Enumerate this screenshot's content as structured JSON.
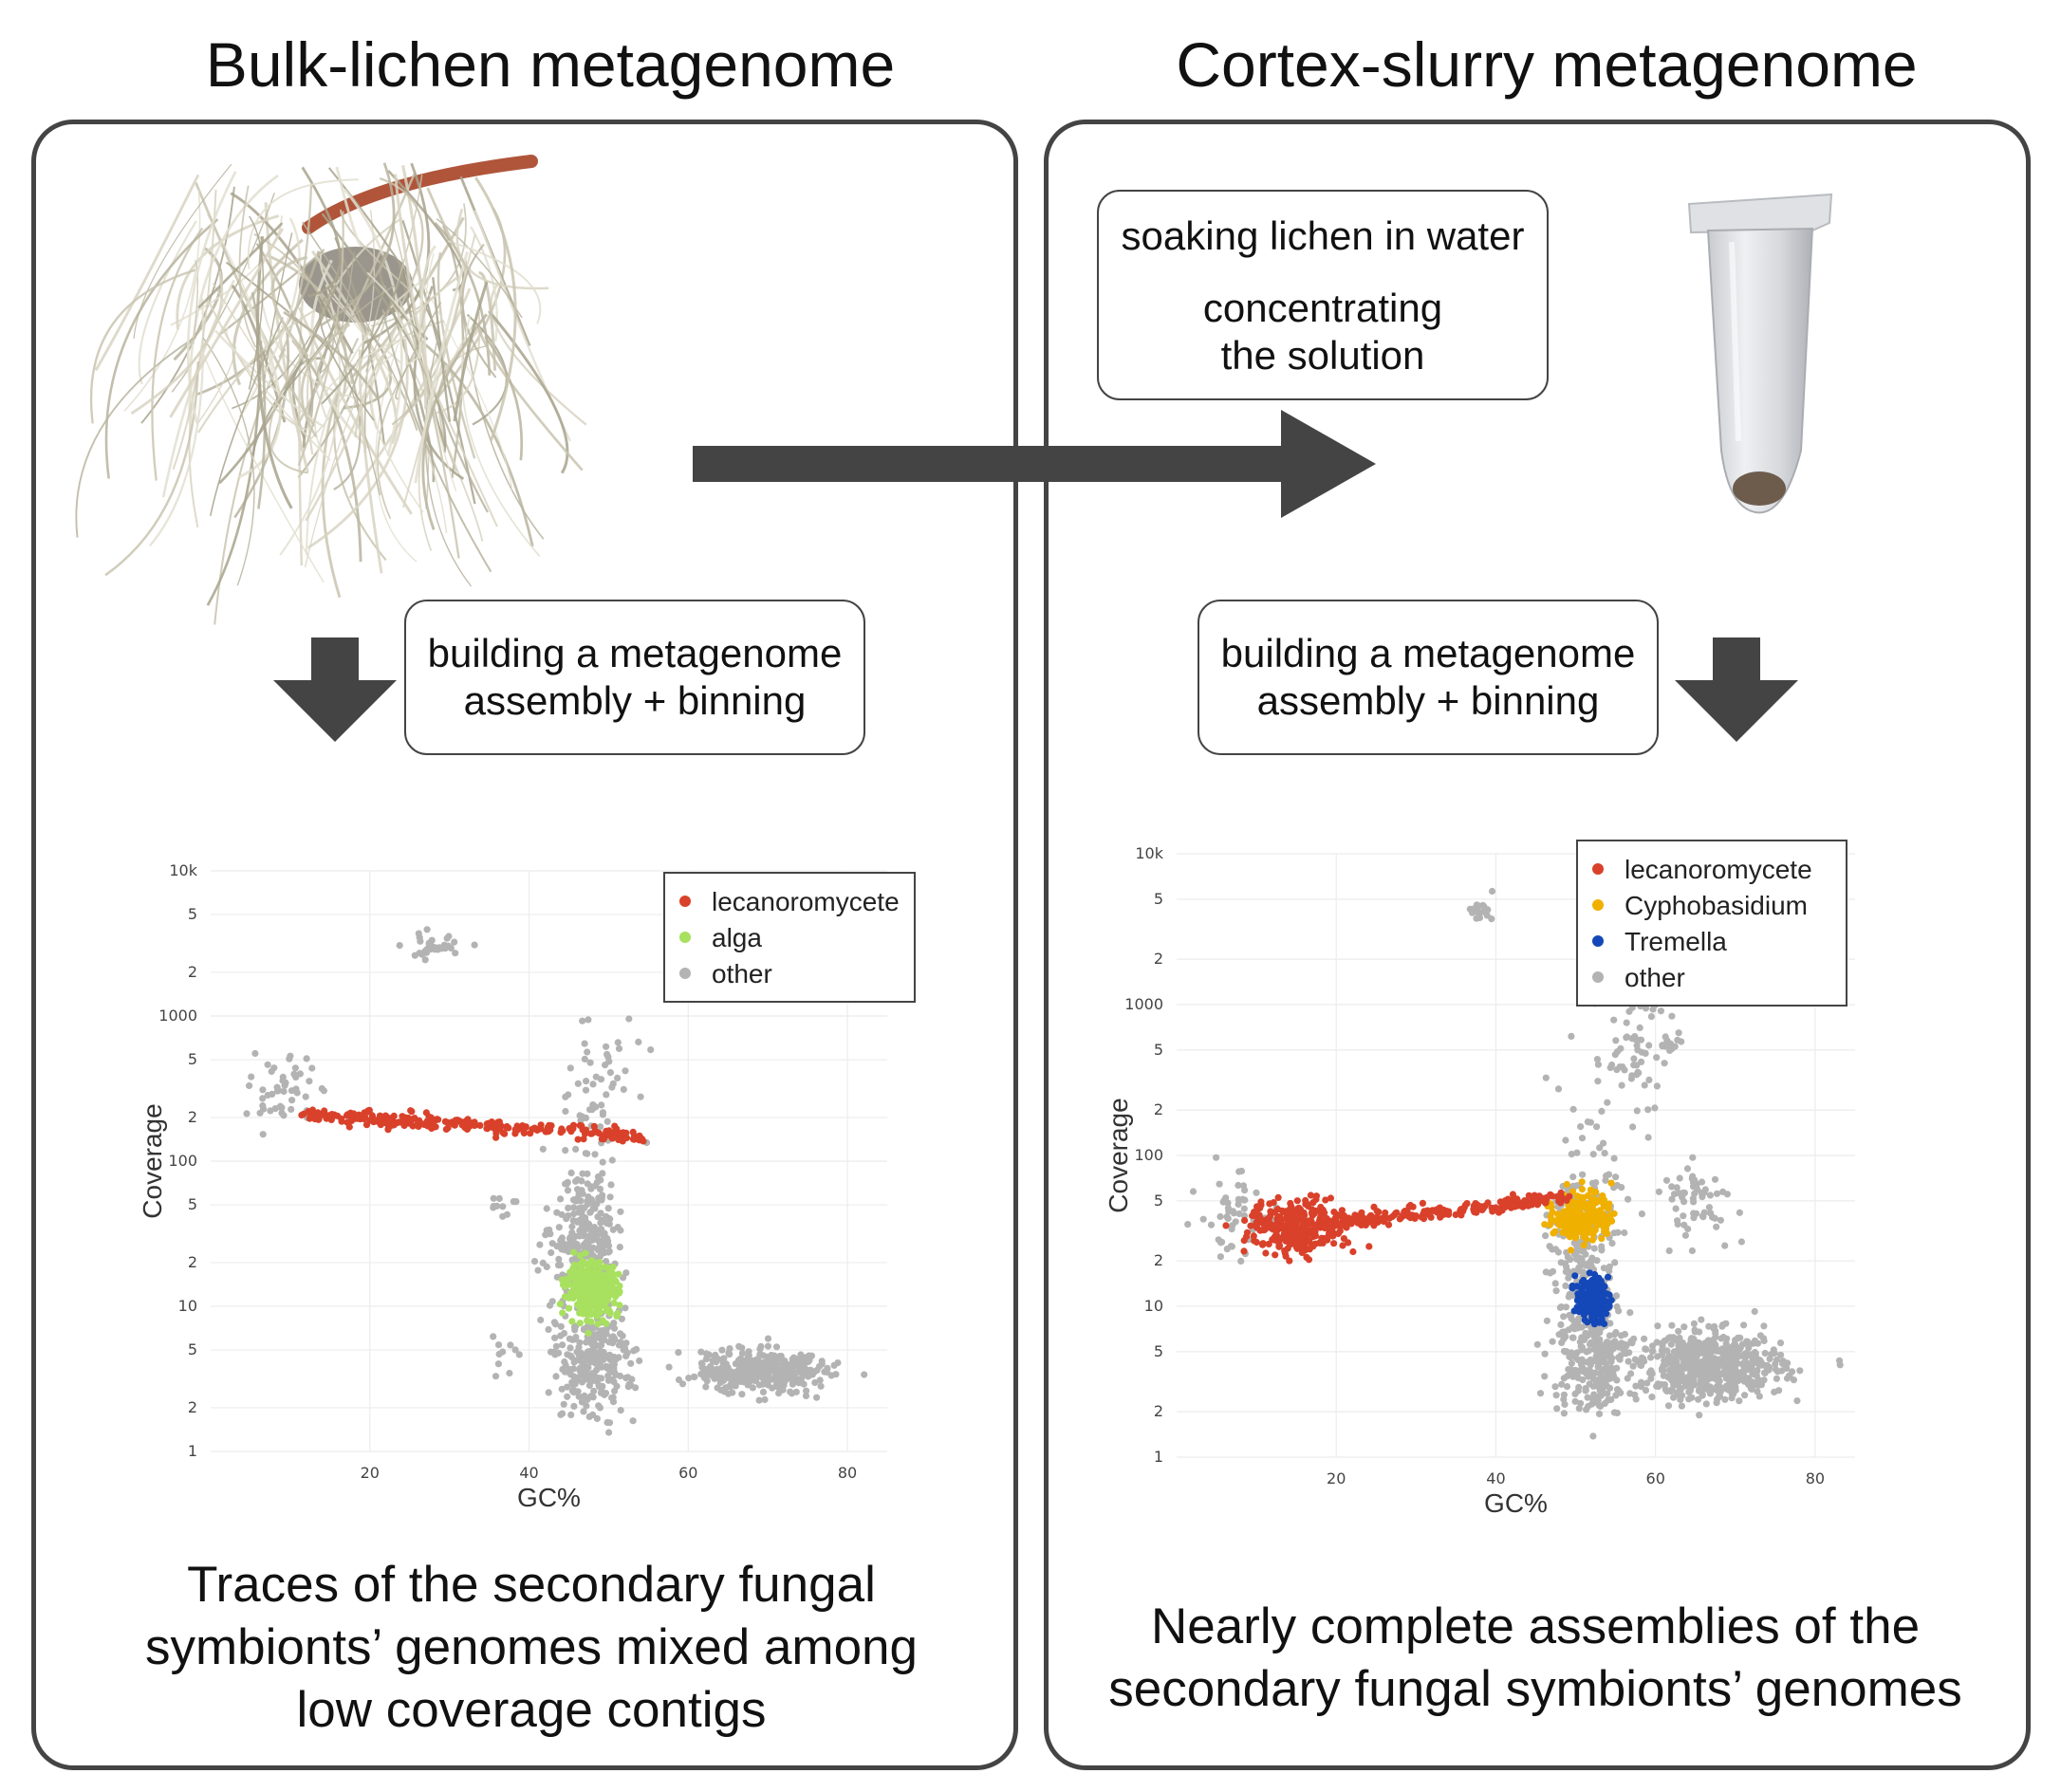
{
  "titles": {
    "left": "Bulk-lichen metagenome",
    "right": "Cortex-slurry metagenome"
  },
  "boxes": {
    "soaking": {
      "line1": "soaking lichen in water",
      "line2": "concentrating",
      "line3": "the solution"
    },
    "assembly_left": {
      "line1": "building a metagenome",
      "line2": "assembly + binning"
    },
    "assembly_right": {
      "line1": "building a metagenome",
      "line2": "assembly + binning"
    }
  },
  "captions": {
    "left": [
      "Traces of the secondary fungal",
      "symbionts’ genomes mixed among",
      "low coverage contigs"
    ],
    "right": [
      "Nearly complete assemblies of the",
      "secondary fungal symbionts’ genomes"
    ]
  },
  "images": {
    "lichen": "lichen-photo",
    "tube": "microcentrifuge-tube-photo"
  },
  "colors": {
    "lecanoromycete": "#d9412b",
    "alga": "#a8e05f",
    "Cyphobasidium": "#f0b000",
    "Tremella": "#1448b8",
    "other": "#b3b3b3",
    "arrow": "#444444"
  },
  "chart_data": [
    {
      "type": "scatter",
      "title": "",
      "xlabel": "GC%",
      "ylabel": "Coverage",
      "x_ticks": [
        "20",
        "40",
        "60",
        "80"
      ],
      "y_ticks": [
        "1",
        "2",
        "5",
        "10",
        "2",
        "5",
        "100",
        "2",
        "5",
        "1000",
        "2",
        "5",
        "10k"
      ],
      "xlim": [
        0,
        85
      ],
      "ylim": [
        1,
        10000
      ],
      "y_scale": "log",
      "legend_position": "top-right",
      "series": [
        {
          "name": "lecanoromycete",
          "color": "#d9412b",
          "clusters": [
            {
              "x_range": [
                12,
                54
              ],
              "y_from": 210,
              "y_to": 150,
              "n": 260,
              "kind": "band"
            }
          ]
        },
        {
          "name": "alga",
          "color": "#a8e05f",
          "clusters": [
            {
              "x_center": 48,
              "y_center": 13,
              "x_sd": 1.6,
              "y_sd_log": 0.09,
              "n": 340
            }
          ]
        },
        {
          "name": "other",
          "color": "#b3b3b3",
          "clusters": [
            {
              "x_center": 69,
              "y_center": 3.6,
              "x_sd": 4,
              "y_sd_log": 0.07,
              "n": 420
            },
            {
              "x_center": 48,
              "y_center": 4.0,
              "x_sd": 2.5,
              "y_sd_log": 0.18,
              "n": 260
            },
            {
              "x_center": 47,
              "y_center": 30,
              "x_sd": 2.0,
              "y_sd_log": 0.22,
              "n": 280
            },
            {
              "x_center": 48,
              "y_center": 300,
              "x_sd": 2.5,
              "y_sd_log": 0.3,
              "n": 60
            },
            {
              "x_center": 28,
              "y_center": 3000,
              "x_sd": 2.0,
              "y_sd_log": 0.04,
              "n": 40
            },
            {
              "x_center": 9,
              "y_center": 300,
              "x_sd": 2.0,
              "y_sd_log": 0.12,
              "n": 50
            },
            {
              "x_center": 37,
              "y_center": 50,
              "x_sd": 1.0,
              "y_sd_log": 0.06,
              "n": 10
            },
            {
              "x_center": 37,
              "y_center": 5,
              "x_sd": 1.0,
              "y_sd_log": 0.06,
              "n": 10
            }
          ]
        }
      ]
    },
    {
      "type": "scatter",
      "title": "",
      "xlabel": "GC%",
      "ylabel": "Coverage",
      "x_ticks": [
        "20",
        "40",
        "60",
        "80"
      ],
      "y_ticks": [
        "1",
        "2",
        "5",
        "10",
        "2",
        "5",
        "100",
        "2",
        "5",
        "1000",
        "2",
        "5",
        "10k"
      ],
      "xlim": [
        0,
        85
      ],
      "ylim": [
        1,
        10000
      ],
      "y_scale": "log",
      "legend_position": "top-right",
      "series": [
        {
          "name": "lecanoromycete",
          "color": "#d9412b",
          "clusters": [
            {
              "x_center": 15,
              "y_center": 33,
              "x_sd": 3,
              "y_sd_log": 0.09,
              "n": 300
            },
            {
              "x_range": [
                18,
                49
              ],
              "y_from": 35,
              "y_to": 52,
              "n": 220,
              "kind": "band"
            }
          ]
        },
        {
          "name": "Cyphobasidium",
          "color": "#f0b000",
          "clusters": [
            {
              "x_center": 51,
              "y_center": 40,
              "x_sd": 1.8,
              "y_sd_log": 0.09,
              "n": 200
            }
          ]
        },
        {
          "name": "Tremella",
          "color": "#1448b8",
          "clusters": [
            {
              "x_center": 52,
              "y_center": 11,
              "x_sd": 1.0,
              "y_sd_log": 0.07,
              "n": 180
            }
          ]
        },
        {
          "name": "other",
          "color": "#b3b3b3",
          "clusters": [
            {
              "x_center": 67,
              "y_center": 4.0,
              "x_sd": 4.5,
              "y_sd_log": 0.11,
              "n": 600
            },
            {
              "x_center": 52,
              "y_center": 4.5,
              "x_sd": 2.5,
              "y_sd_log": 0.18,
              "n": 250
            },
            {
              "x_center": 51,
              "y_center": 25,
              "x_sd": 2.0,
              "y_sd_log": 0.35,
              "n": 260
            },
            {
              "x_center": 57,
              "y_center": 500,
              "x_sd": 2.5,
              "y_sd_log": 0.25,
              "n": 70
            },
            {
              "x_center": 38,
              "y_center": 4200,
              "x_sd": 0.8,
              "y_sd_log": 0.03,
              "n": 20
            },
            {
              "x_center": 62,
              "y_center": 550,
              "x_sd": 1.0,
              "y_sd_log": 0.02,
              "n": 15
            },
            {
              "x_center": 65,
              "y_center": 50,
              "x_sd": 2.5,
              "y_sd_log": 0.12,
              "n": 60
            },
            {
              "x_center": 7,
              "y_center": 40,
              "x_sd": 2.0,
              "y_sd_log": 0.15,
              "n": 50
            }
          ]
        }
      ]
    }
  ]
}
